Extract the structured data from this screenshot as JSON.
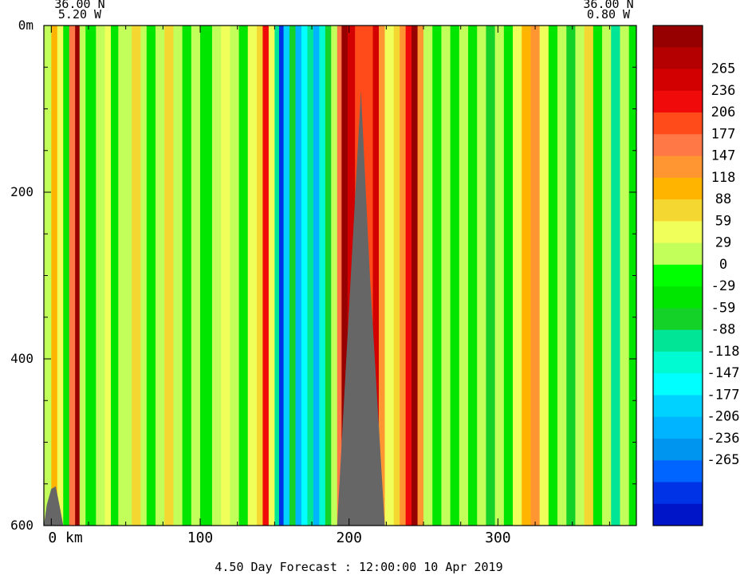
{
  "chart_data": {
    "type": "heatmap",
    "title": "",
    "corner_labels": {
      "left_lat": "36.00 N",
      "left_lon": "5.20 W",
      "right_lat": "36.00 N",
      "right_lon": "0.80 W"
    },
    "x_axis": {
      "range": [
        -5,
        393
      ],
      "ticks": [
        {
          "value": 0,
          "label": "0 km"
        },
        {
          "value": 100,
          "label": "100"
        },
        {
          "value": 200,
          "label": "200"
        },
        {
          "value": 300,
          "label": "300"
        }
      ]
    },
    "y_axis": {
      "range": [
        0,
        600
      ],
      "inverted": true,
      "ticks": [
        {
          "value": 0,
          "label": "0m"
        },
        {
          "value": 200,
          "label": "200"
        },
        {
          "value": 400,
          "label": "400"
        },
        {
          "value": 600,
          "label": "600"
        }
      ]
    },
    "colorbar": {
      "labels": [
        "265",
        "236",
        "206",
        "177",
        "147",
        "118",
        "88",
        "59",
        "29",
        "0",
        "-29",
        "-59",
        "-88",
        "-118",
        "-147",
        "-177",
        "-206",
        "-236",
        "-265"
      ],
      "colors": [
        "#960000",
        "#b40000",
        "#d20000",
        "#f00a0a",
        "#ff4b19",
        "#ff7846",
        "#ff9632",
        "#ffb400",
        "#f5d732",
        "#f0ff5a",
        "#c3ff5a",
        "#00ff00",
        "#00e600",
        "#14d228",
        "#00e696",
        "#00fad2",
        "#00ffff",
        "#00d2ff",
        "#00b4ff",
        "#0096f0",
        "#0064ff",
        "#0032e6",
        "#0014c8"
      ]
    },
    "columns": [
      {
        "x0": -5,
        "x1": 0,
        "v": 20
      },
      {
        "x0": 0,
        "x1": 4,
        "v": 100
      },
      {
        "x0": 4,
        "x1": 8,
        "v": 40
      },
      {
        "x0": 8,
        "x1": 12,
        "v": -20
      },
      {
        "x0": 12,
        "x1": 16,
        "v": 150
      },
      {
        "x0": 16,
        "x1": 19,
        "v": 280
      },
      {
        "x0": 19,
        "x1": 23,
        "v": 30
      },
      {
        "x0": 23,
        "x1": 30,
        "v": -30
      },
      {
        "x0": 30,
        "x1": 36,
        "v": 20
      },
      {
        "x0": 36,
        "x1": 40,
        "v": 60
      },
      {
        "x0": 40,
        "x1": 45,
        "v": -30
      },
      {
        "x0": 45,
        "x1": 54,
        "v": 20
      },
      {
        "x0": 54,
        "x1": 60,
        "v": 70
      },
      {
        "x0": 60,
        "x1": 64,
        "v": 25
      },
      {
        "x0": 64,
        "x1": 70,
        "v": -30
      },
      {
        "x0": 70,
        "x1": 76,
        "v": 30
      },
      {
        "x0": 76,
        "x1": 82,
        "v": 80
      },
      {
        "x0": 82,
        "x1": 88,
        "v": 20
      },
      {
        "x0": 88,
        "x1": 94,
        "v": -30
      },
      {
        "x0": 94,
        "x1": 100,
        "v": 15
      },
      {
        "x0": 100,
        "x1": 108,
        "v": -20
      },
      {
        "x0": 108,
        "x1": 114,
        "v": 30
      },
      {
        "x0": 114,
        "x1": 120,
        "v": 60
      },
      {
        "x0": 120,
        "x1": 126,
        "v": 20
      },
      {
        "x0": 126,
        "x1": 132,
        "v": -20
      },
      {
        "x0": 132,
        "x1": 138,
        "v": 40
      },
      {
        "x0": 138,
        "x1": 142,
        "v": 80
      },
      {
        "x0": 142,
        "x1": 146,
        "v": 200
      },
      {
        "x0": 146,
        "x1": 150,
        "v": 60
      },
      {
        "x0": 150,
        "x1": 153,
        "v": -80
      },
      {
        "x0": 153,
        "x1": 156,
        "v": -260
      },
      {
        "x0": 156,
        "x1": 160,
        "v": -150
      },
      {
        "x0": 160,
        "x1": 164,
        "v": -60
      },
      {
        "x0": 164,
        "x1": 168,
        "v": -180
      },
      {
        "x0": 168,
        "x1": 172,
        "v": -130
      },
      {
        "x0": 172,
        "x1": 176,
        "v": -80
      },
      {
        "x0": 176,
        "x1": 180,
        "v": -180
      },
      {
        "x0": 180,
        "x1": 184,
        "v": -100
      },
      {
        "x0": 184,
        "x1": 188,
        "v": -40
      },
      {
        "x0": 188,
        "x1": 192,
        "v": 30
      },
      {
        "x0": 192,
        "x1": 195,
        "v": 150
      },
      {
        "x0": 195,
        "x1": 199,
        "v": 290
      },
      {
        "x0": 199,
        "x1": 204,
        "v": 240
      },
      {
        "x0": 204,
        "x1": 216,
        "v": 180
      },
      {
        "x0": 216,
        "x1": 220,
        "v": 240
      },
      {
        "x0": 220,
        "x1": 224,
        "v": 120
      },
      {
        "x0": 224,
        "x1": 230,
        "v": 40
      },
      {
        "x0": 230,
        "x1": 234,
        "v": 80
      },
      {
        "x0": 234,
        "x1": 238,
        "v": 130
      },
      {
        "x0": 238,
        "x1": 242,
        "v": 200
      },
      {
        "x0": 242,
        "x1": 246,
        "v": 270
      },
      {
        "x0": 246,
        "x1": 250,
        "v": 120
      },
      {
        "x0": 250,
        "x1": 256,
        "v": 20
      },
      {
        "x0": 256,
        "x1": 262,
        "v": -30
      },
      {
        "x0": 262,
        "x1": 268,
        "v": 20
      },
      {
        "x0": 268,
        "x1": 274,
        "v": -25
      },
      {
        "x0": 274,
        "x1": 280,
        "v": 25
      },
      {
        "x0": 280,
        "x1": 286,
        "v": -30
      },
      {
        "x0": 286,
        "x1": 292,
        "v": 20
      },
      {
        "x0": 292,
        "x1": 298,
        "v": -60
      },
      {
        "x0": 298,
        "x1": 304,
        "v": 15
      },
      {
        "x0": 304,
        "x1": 310,
        "v": -30
      },
      {
        "x0": 310,
        "x1": 316,
        "v": 40
      },
      {
        "x0": 316,
        "x1": 322,
        "v": 90
      },
      {
        "x0": 322,
        "x1": 328,
        "v": 130
      },
      {
        "x0": 328,
        "x1": 334,
        "v": 60
      },
      {
        "x0": 334,
        "x1": 340,
        "v": -20
      },
      {
        "x0": 340,
        "x1": 346,
        "v": 25
      },
      {
        "x0": 346,
        "x1": 352,
        "v": -40
      },
      {
        "x0": 352,
        "x1": 358,
        "v": 20
      },
      {
        "x0": 358,
        "x1": 364,
        "v": 70
      },
      {
        "x0": 364,
        "x1": 370,
        "v": -30
      },
      {
        "x0": 370,
        "x1": 376,
        "v": 20
      },
      {
        "x0": 376,
        "x1": 382,
        "v": -80
      },
      {
        "x0": 382,
        "x1": 388,
        "v": 20
      },
      {
        "x0": 388,
        "x1": 393,
        "v": -20
      }
    ],
    "topography": [
      {
        "x": -5,
        "depth": 600
      },
      {
        "x": -3,
        "depth": 575
      },
      {
        "x": 0,
        "depth": 556
      },
      {
        "x": 3,
        "depth": 553
      },
      {
        "x": 6,
        "depth": 580
      },
      {
        "x": 8,
        "depth": 600
      },
      {
        "x": 192,
        "depth": 600
      },
      {
        "x": 208,
        "depth": 78
      },
      {
        "x": 214,
        "depth": 300
      },
      {
        "x": 224,
        "depth": 600
      }
    ],
    "footer": "4.50 Day Forecast : 12:00:00  10 Apr 2019"
  }
}
